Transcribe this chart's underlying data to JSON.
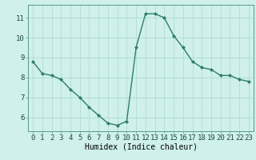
{
  "x": [
    0,
    1,
    2,
    3,
    4,
    5,
    6,
    7,
    8,
    9,
    10,
    11,
    12,
    13,
    14,
    15,
    16,
    17,
    18,
    19,
    20,
    21,
    22,
    23
  ],
  "y": [
    8.8,
    8.2,
    8.1,
    7.9,
    7.4,
    7.0,
    6.5,
    6.1,
    5.7,
    5.6,
    5.8,
    9.5,
    11.2,
    11.2,
    11.0,
    10.1,
    9.5,
    8.8,
    8.5,
    8.4,
    8.1,
    8.1,
    7.9,
    7.8
  ],
  "line_color": "#2e7d6e",
  "marker": "D",
  "marker_size": 2.0,
  "linewidth": 1.0,
  "bg_color": "#cff0eb",
  "grid_color": "#aad8d0",
  "grid_linewidth": 0.5,
  "xlabel": "Humidex (Indice chaleur)",
  "xlabel_fontsize": 7,
  "xtick_labels": [
    "0",
    "1",
    "2",
    "3",
    "4",
    "5",
    "6",
    "7",
    "8",
    "9",
    "10",
    "11",
    "12",
    "13",
    "14",
    "15",
    "16",
    "17",
    "18",
    "19",
    "20",
    "21",
    "22",
    "23"
  ],
  "ytick_labels": [
    "6",
    "7",
    "8",
    "9",
    "10",
    "11"
  ],
  "ytick_vals": [
    6,
    7,
    8,
    9,
    10,
    11
  ],
  "ylim": [
    5.3,
    11.65
  ],
  "xlim": [
    -0.5,
    23.5
  ],
  "tick_fontsize": 6.5
}
